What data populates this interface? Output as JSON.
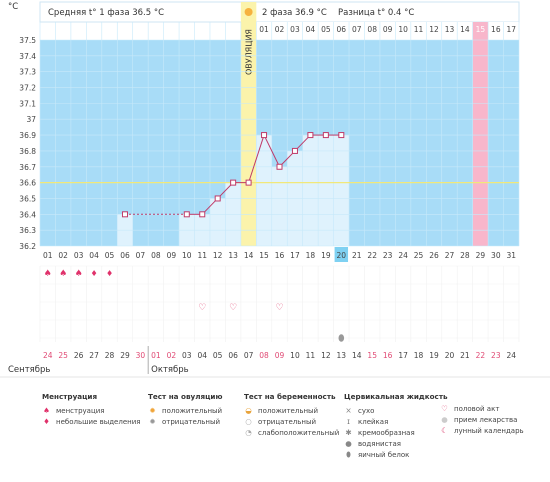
{
  "header": {
    "unit": "°C",
    "phase1_text": "Средняя t° 1 фаза 36.5 °C",
    "phase2_text": "2 фаза 36.9 °C",
    "diff_text": "Разница t° 0.4 °C",
    "ovulation_label": "ОВУЛЯЦИЯ"
  },
  "phase2_days": [
    "01",
    "02",
    "03",
    "04",
    "05",
    "06",
    "07",
    "08",
    "09",
    "10",
    "11",
    "12",
    "13",
    "14",
    "15",
    "16",
    "17"
  ],
  "phase2_highlight_day": "15",
  "chart_data": {
    "type": "line",
    "ylim": [
      36.2,
      37.5
    ],
    "y_ticks": [
      "37.5",
      "37.4",
      "37.3",
      "37.2",
      "37.1",
      "37",
      "36.9",
      "36.8",
      "36.7",
      "36.6",
      "36.5",
      "36.4",
      "36.3",
      "36.2"
    ],
    "x": [
      "01",
      "02",
      "03",
      "04",
      "05",
      "06",
      "07",
      "08",
      "09",
      "10",
      "11",
      "12",
      "13",
      "14",
      "15",
      "16",
      "17",
      "18",
      "19",
      "20",
      "21",
      "22",
      "23",
      "24",
      "25",
      "26",
      "27",
      "28",
      "29",
      "30",
      "31"
    ],
    "temperatures": [
      null,
      null,
      null,
      null,
      null,
      36.4,
      null,
      null,
      null,
      36.4,
      36.4,
      36.5,
      36.6,
      36.6,
      36.9,
      36.7,
      36.8,
      36.9,
      36.9,
      36.9,
      null,
      null,
      null,
      null,
      null,
      null,
      null,
      null,
      null,
      null,
      null
    ],
    "coverline": 36.6,
    "ovulation_day": "14",
    "highlight_day": "29",
    "today": "20"
  },
  "markers": {
    "menstruation_days": [
      "01",
      "02",
      "03",
      "04",
      "05"
    ],
    "menstruation_heavy_days": [
      "01",
      "02",
      "03"
    ],
    "intercourse_days": [
      "11",
      "13",
      "16"
    ],
    "mucus_egg_white_day": "20"
  },
  "dates": {
    "sept_days": [
      "24",
      "25",
      "26",
      "27",
      "28",
      "29",
      "30"
    ],
    "oct_days": [
      "01",
      "02",
      "03",
      "04",
      "05",
      "06",
      "07",
      "08",
      "09",
      "10",
      "11",
      "12",
      "13",
      "14",
      "15",
      "16",
      "17",
      "18",
      "19",
      "20",
      "21",
      "22",
      "23",
      "24"
    ],
    "sept_label": "Сентябрь",
    "oct_label": "Октябрь"
  },
  "legend": {
    "menstruation": {
      "title": "Менструация",
      "items": [
        "менструация",
        "небольшие выделения"
      ]
    },
    "ovulation_test": {
      "title": "Тест на овуляцию",
      "items": [
        "положительный",
        "отрицательный"
      ]
    },
    "pregnancy_test": {
      "title": "Тест на беременность",
      "items": [
        "положительный",
        "отрицательный",
        "слабоположительный"
      ]
    },
    "cervical": {
      "title": "Цервикальная жидкость",
      "items": [
        "сухо",
        "клейкая",
        "кремообразная",
        "водянистая",
        "яичный белок"
      ]
    },
    "other": {
      "items": [
        "половой акт",
        "прием лекарства",
        "лунный календарь"
      ]
    }
  },
  "colors": {
    "grid_bg": "#a8dcf7",
    "bar_fill": "#dff2fd",
    "ovulation": "#fbf3ab",
    "highlight": "#f8b6cb",
    "today": "#7fd1f2",
    "line": "#c03a68",
    "coverline": "#f2e879"
  }
}
